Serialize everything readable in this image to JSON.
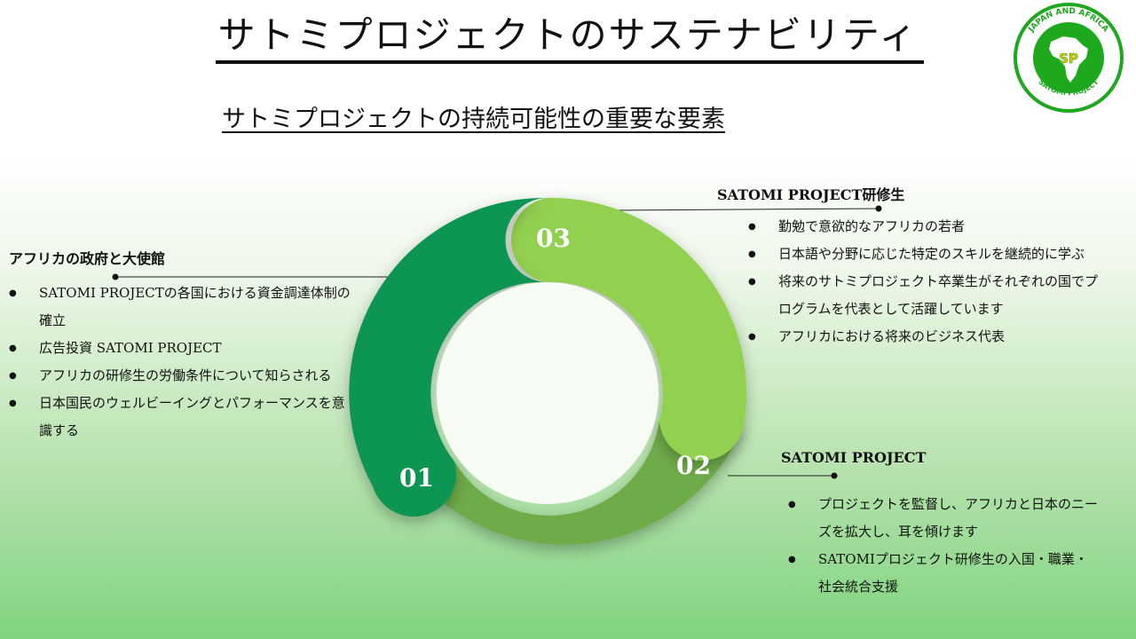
{
  "header": {
    "title": "サトミプロジェクトのサステナビリティ",
    "subtitle": "サトミプロジェクトの持続可能性の重要な要素"
  },
  "logo": {
    "text_top": "JAPAN AND AFRICA",
    "text_bottom": "SATOMI PROJECT",
    "monogram": "SP"
  },
  "colors": {
    "segment_01": "#119552",
    "segment_02": "#6eab48",
    "segment_03": "#92d050",
    "logo_green": "#1ea81e"
  },
  "diagram": {
    "segments": [
      {
        "number": "01",
        "heading": "アフリカの政府と大使館",
        "bullets": [
          "SATOMI PROJECTの各国における資金調達体制の確立",
          "広告投資 SATOMI PROJECT",
          "アフリカの研修生の労働条件について知らされる",
          "日本国民のウェルビーイングとパフォーマンスを意識する"
        ]
      },
      {
        "number": "02",
        "heading": "SATOMI PROJECT",
        "bullets": [
          "プロジェクトを監督し、アフリカと日本のニーズを拡大し、耳を傾けます",
          "SATOMIプロジェクト研修生の入国・職業・社会統合支援"
        ]
      },
      {
        "number": "03",
        "heading": "SATOMI PROJECT研修生",
        "bullets": [
          "勤勉で意欲的なアフリカの若者",
          "日本語や分野に応じた特定のスキルを継続的に学ぶ",
          "将来のサトミプロジェクト卒業生がそれぞれの国でプログラムを代表として活躍しています",
          "アフリカにおける将来のビジネス代表"
        ]
      }
    ]
  }
}
